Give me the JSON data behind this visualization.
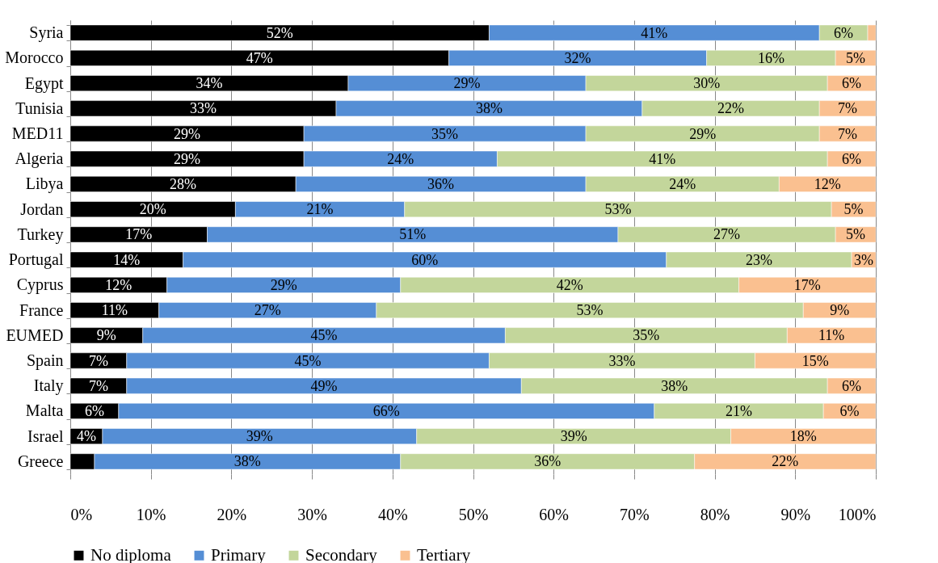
{
  "chart_data": {
    "type": "bar",
    "orientation": "horizontal",
    "stacked": true,
    "categories": [
      "Syria",
      "Morocco",
      "Egypt",
      "Tunisia",
      "MED11",
      "Algeria",
      "Libya",
      "Jordan",
      "Turkey",
      "Portugal",
      "Cyprus",
      "France",
      "EUMED",
      "Spain",
      "Italy",
      "Malta",
      "Israel",
      "Greece"
    ],
    "series": [
      {
        "name": "No diploma",
        "color": "#000000",
        "values": [
          52,
          47,
          34.5,
          33,
          29,
          29,
          28,
          20.5,
          17,
          14,
          12,
          11,
          9,
          7,
          7,
          6,
          4,
          3
        ],
        "value_labels": [
          "52%",
          "47%",
          "34%",
          "33%",
          "29%",
          "29%",
          "28%",
          "20%",
          "17%",
          "14%",
          "12%",
          "11%",
          "9%",
          "7%",
          "7%",
          "6%",
          "4%",
          null
        ]
      },
      {
        "name": "Primary",
        "color": "#558ed5",
        "values": [
          41,
          32,
          29.5,
          38,
          35,
          24,
          36,
          21,
          51,
          60,
          29,
          27,
          45,
          45,
          49,
          66.5,
          39,
          38
        ],
        "value_labels": [
          "41%",
          "32%",
          "29%",
          "38%",
          "35%",
          "24%",
          "36%",
          "21%",
          "51%",
          "60%",
          "29%",
          "27%",
          "45%",
          "45%",
          "49%",
          "66%",
          "39%",
          "38%"
        ]
      },
      {
        "name": "Secondary",
        "color": "#c3d69b",
        "values": [
          6,
          16,
          30,
          22,
          29,
          41,
          24,
          53,
          27,
          23,
          42,
          53,
          35,
          33,
          38,
          21,
          39,
          36.5
        ],
        "value_labels": [
          "6%",
          "16%",
          "30%",
          "22%",
          "29%",
          "41%",
          "24%",
          "53%",
          "27%",
          "23%",
          "42%",
          "53%",
          "35%",
          "33%",
          "38%",
          "21%",
          "39%",
          "36%"
        ]
      },
      {
        "name": "Tertiary",
        "color": "#fac090",
        "values": [
          1,
          5,
          6,
          7,
          7,
          6,
          12,
          5.5,
          5,
          3,
          17,
          9,
          11,
          15,
          6,
          6.5,
          18,
          22.5
        ],
        "value_labels": [
          null,
          "5%",
          "6%",
          "7%",
          "7%",
          "6%",
          "12%",
          "5%",
          "5%",
          "3%",
          "17%",
          "9%",
          "11%",
          "15%",
          "6%",
          "6%",
          "18%",
          "22%"
        ]
      }
    ],
    "xlim": [
      0,
      100
    ],
    "xticks": [
      {
        "value": 0,
        "label": "0%"
      },
      {
        "value": 10,
        "label": "10%"
      },
      {
        "value": 20,
        "label": "20%"
      },
      {
        "value": 30,
        "label": "30%"
      },
      {
        "value": 40,
        "label": "40%"
      },
      {
        "value": 50,
        "label": "50%"
      },
      {
        "value": 60,
        "label": "60%"
      },
      {
        "value": 70,
        "label": "70%"
      },
      {
        "value": 80,
        "label": "80%"
      },
      {
        "value": 90,
        "label": "90%"
      },
      {
        "value": 100,
        "label": "100%"
      }
    ],
    "grid": "x",
    "legend": "bottom"
  }
}
